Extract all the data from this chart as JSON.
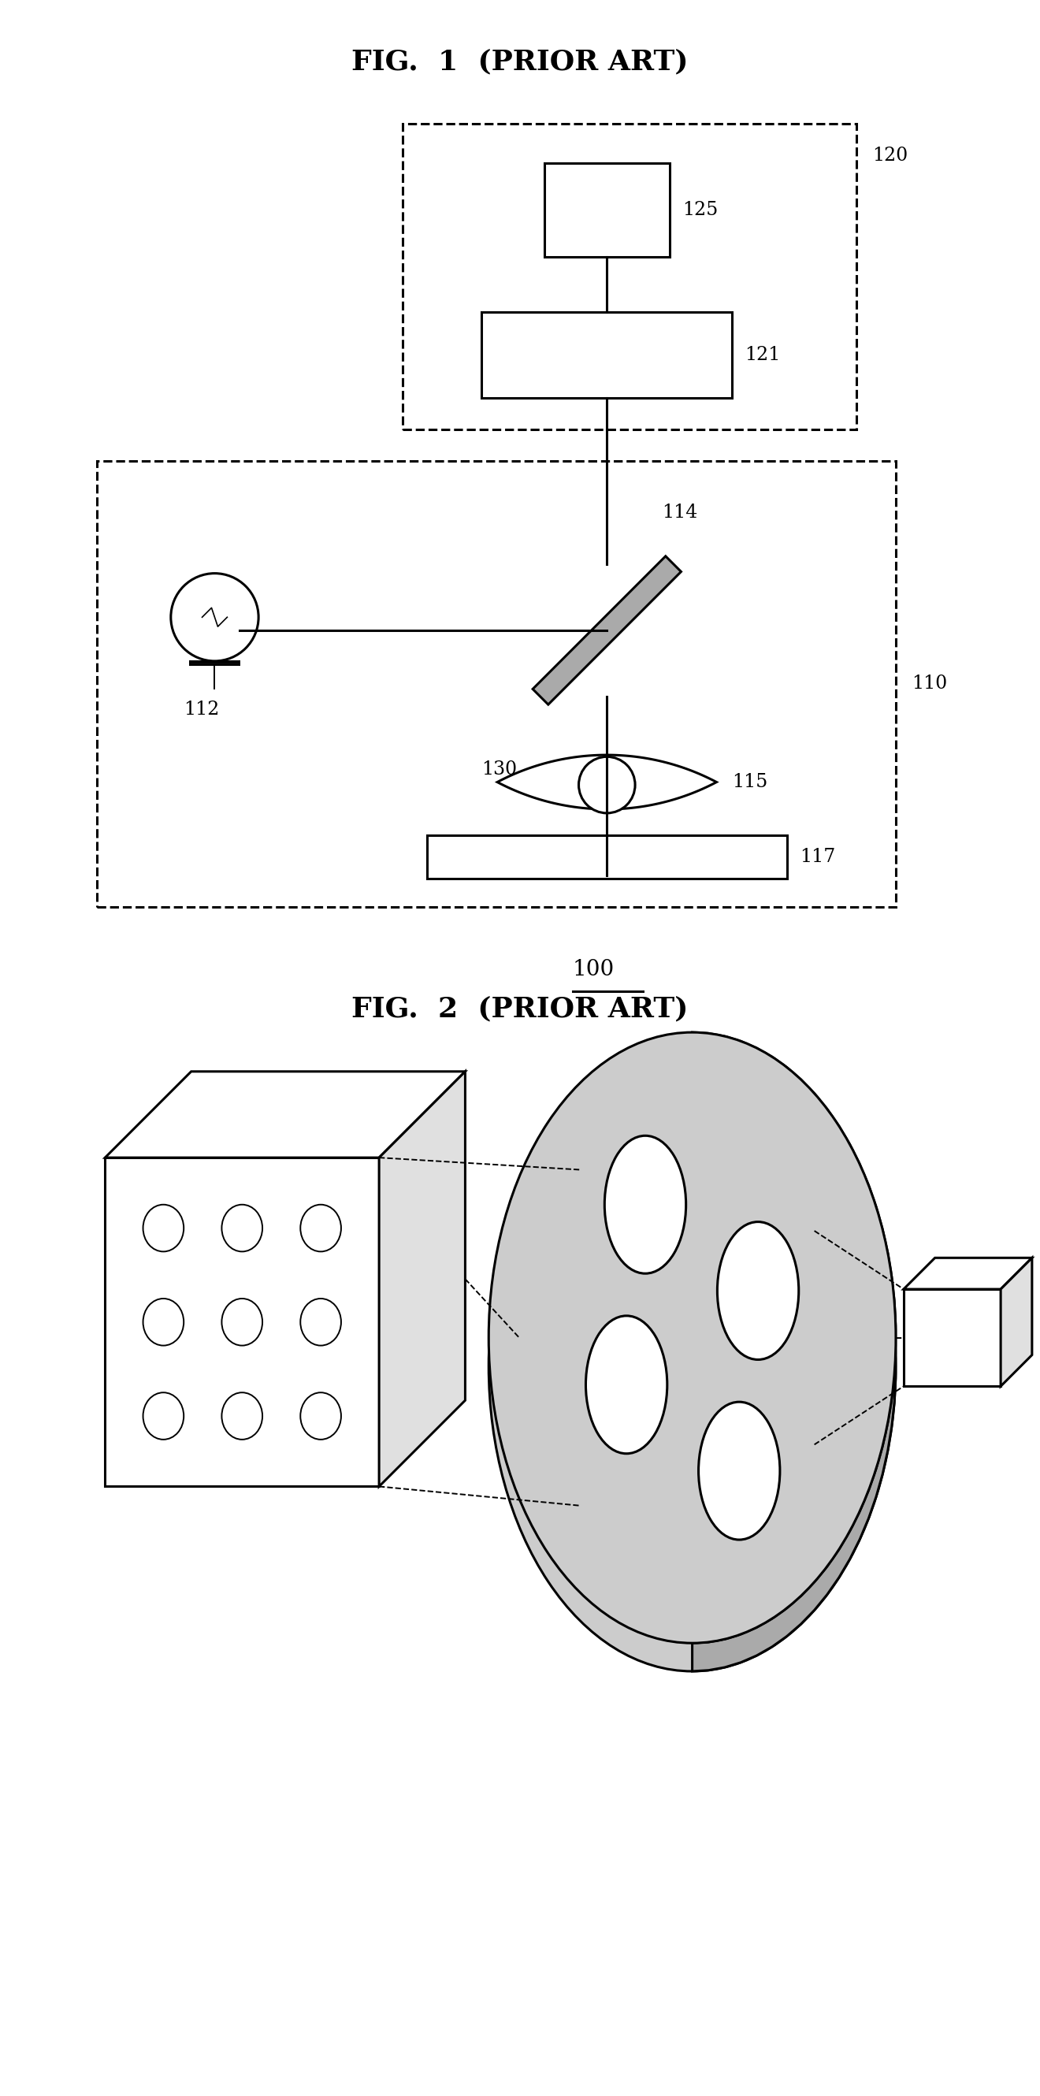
{
  "fig1_title": "FIG.  1  (PRIOR ART)",
  "fig2_title": "FIG.  2  (PRIOR ART)",
  "label_100": "100",
  "label_110": "110",
  "label_112": "112",
  "label_114": "114",
  "label_115": "115",
  "label_117": "117",
  "label_120": "120",
  "label_121": "121",
  "label_125": "125",
  "label_130": "130",
  "bg_color": "#ffffff",
  "line_color": "#000000",
  "font_size_title": 26,
  "font_size_label": 17
}
